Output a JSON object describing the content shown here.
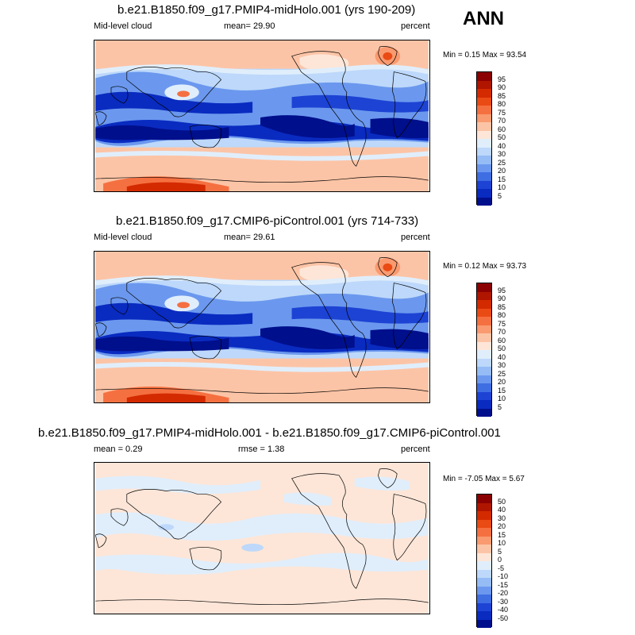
{
  "season": "ANN",
  "panels": [
    {
      "title": "b.e21.B1850.f09_g17.PMIP4-midHolo.001 (yrs 190-209)",
      "left_label": "Mid-level cloud",
      "center_label": "mean=  29.90",
      "units": "percent",
      "minmax": "Min =  0.15 Max =  93.54",
      "colorbar": {
        "levels": [
          "95",
          "90",
          "85",
          "80",
          "75",
          "70",
          "60",
          "50",
          "40",
          "30",
          "25",
          "20",
          "15",
          "10",
          "5"
        ],
        "colors": [
          "#8b0000",
          "#b01500",
          "#d42a00",
          "#ea4a14",
          "#f57040",
          "#fa9a70",
          "#fcc4a6",
          "#fde6d8",
          "#e0eefc",
          "#bdd8fa",
          "#95bcf5",
          "#6b98ee",
          "#3f6ee3",
          "#1d43d4",
          "#0a2bc0",
          "#000f8c"
        ]
      }
    },
    {
      "title": "b.e21.B1850.f09_g17.CMIP6-piControl.001 (yrs 714-733)",
      "left_label": "Mid-level cloud",
      "center_label": "mean=  29.61",
      "units": "percent",
      "minmax": "Min =  0.12 Max =  93.73",
      "colorbar": {
        "levels": [
          "95",
          "90",
          "85",
          "80",
          "75",
          "70",
          "60",
          "50",
          "40",
          "30",
          "25",
          "20",
          "15",
          "10",
          "5"
        ],
        "colors": [
          "#8b0000",
          "#b01500",
          "#d42a00",
          "#ea4a14",
          "#f57040",
          "#fa9a70",
          "#fcc4a6",
          "#fde6d8",
          "#e0eefc",
          "#bdd8fa",
          "#95bcf5",
          "#6b98ee",
          "#3f6ee3",
          "#1d43d4",
          "#0a2bc0",
          "#000f8c"
        ]
      }
    },
    {
      "title": "b.e21.B1850.f09_g17.PMIP4-midHolo.001 - b.e21.B1850.f09_g17.CMIP6-piControl.001",
      "left_label": "mean =   0.29",
      "center_label": "rmse =   1.38",
      "units": "percent",
      "minmax": "Min =  -7.05 Max =   5.67",
      "colorbar": {
        "levels": [
          "50",
          "40",
          "30",
          "20",
          "15",
          "10",
          "5",
          "0",
          "-5",
          "-10",
          "-15",
          "-20",
          "-30",
          "-40",
          "-50"
        ],
        "colors": [
          "#8b0000",
          "#b01500",
          "#d42a00",
          "#ea4a14",
          "#f57040",
          "#fa9a70",
          "#fcc4a6",
          "#fde6d8",
          "#e0eefc",
          "#bdd8fa",
          "#95bcf5",
          "#6b98ee",
          "#3f6ee3",
          "#1d43d4",
          "#0a2bc0",
          "#000f8c"
        ]
      }
    }
  ]
}
